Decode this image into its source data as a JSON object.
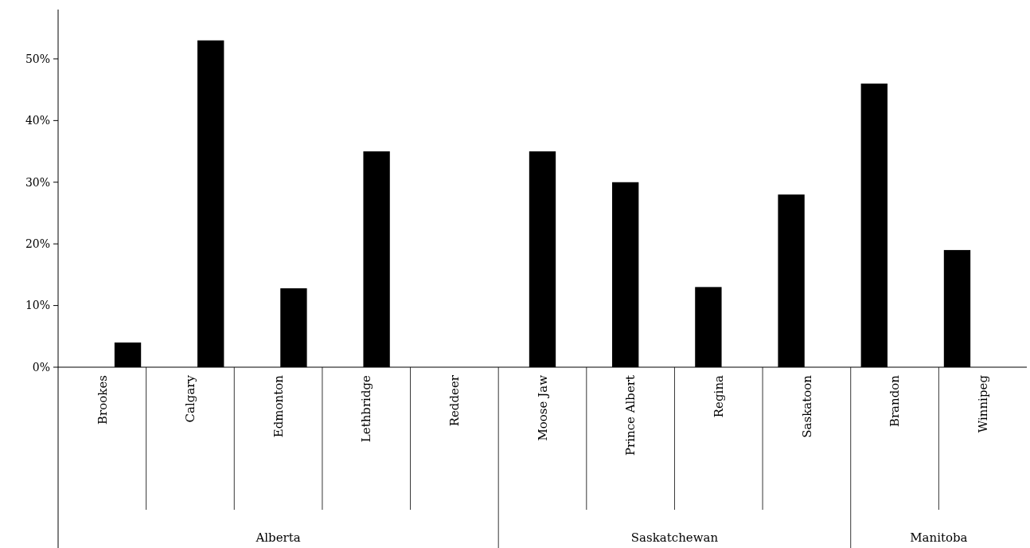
{
  "chart_data": {
    "type": "bar",
    "categories": [
      "Brookes",
      "Calgary",
      "Edmonton",
      "Lethbridge",
      "Reddeer",
      "Moose Jaw",
      "Prince Albert",
      "Regina",
      "Saskatoon",
      "Brandon",
      "Winnipeg"
    ],
    "values": [
      4,
      53,
      12.8,
      35,
      0,
      35,
      30,
      13,
      28,
      46,
      19
    ],
    "color": "#000000",
    "ylim": [
      0,
      58
    ],
    "yticks": [
      {
        "value": 0,
        "label": "0%"
      },
      {
        "value": 10,
        "label": "10%"
      },
      {
        "value": 20,
        "label": "20%"
      },
      {
        "value": 30,
        "label": "30%"
      },
      {
        "value": 40,
        "label": "40%"
      },
      {
        "value": 50,
        "label": "50%"
      }
    ],
    "annotations": [
      "Alberta",
      "Saskatchewan",
      "Manitoba"
    ],
    "grid": false
  }
}
